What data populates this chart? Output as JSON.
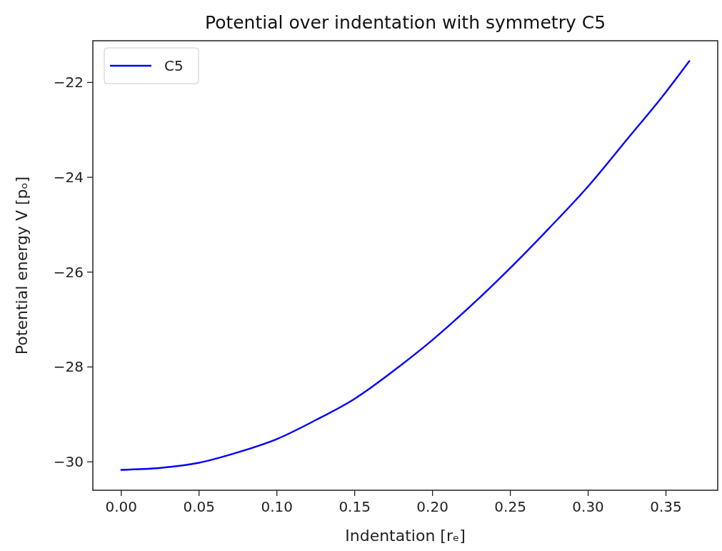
{
  "chart_data": {
    "type": "line",
    "title": "Potential over indentation with symmetry C5",
    "xlabel": "Indentation [rₑ]",
    "ylabel": "Potential energy V [pₒ]",
    "series": [
      {
        "name": "C5",
        "color": "#0000ff",
        "x": [
          0,
          0.025,
          0.05,
          0.075,
          0.1,
          0.125,
          0.15,
          0.175,
          0.2,
          0.225,
          0.25,
          0.275,
          0.3,
          0.325,
          0.35,
          0.365
        ],
        "values": [
          -30.17,
          -30.13,
          -30.02,
          -29.8,
          -29.52,
          -29.12,
          -28.67,
          -28.08,
          -27.43,
          -26.7,
          -25.91,
          -25.07,
          -24.19,
          -23.2,
          -22.2,
          -21.55
        ]
      }
    ],
    "xlim": [
      -0.01825,
      0.38325
    ],
    "ylim": [
      -30.6,
      -21.12
    ],
    "xticks": [
      {
        "value": 0,
        "label": "0.00"
      },
      0.05,
      {
        "value": 0.1,
        "label": "0.10"
      },
      0.15,
      {
        "value": 0.2,
        "label": "0.20"
      },
      0.25,
      {
        "value": 0.3,
        "label": "0.30"
      },
      0.35
    ],
    "yticks": [
      {
        "value": -30,
        "label": "−30"
      },
      {
        "value": -28,
        "label": "−28"
      },
      {
        "value": -26,
        "label": "−26"
      },
      {
        "value": -24,
        "label": "−24"
      },
      {
        "value": -22,
        "label": "−22"
      }
    ],
    "legend": "top left",
    "grid": false,
    "line_style": "solid",
    "marker": "none"
  }
}
